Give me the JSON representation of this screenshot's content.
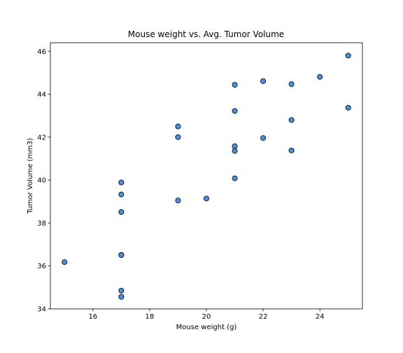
{
  "chart_data": {
    "type": "scatter",
    "title": "Mouse weight vs. Avg. Tumor Volume",
    "xlabel": "Mouse weight (g)",
    "ylabel": "Tumor Volume (mm3)",
    "xlim": [
      14.5,
      25.5
    ],
    "ylim": [
      34,
      46.4
    ],
    "xticks": [
      16,
      18,
      20,
      22,
      24
    ],
    "yticks": [
      34,
      36,
      38,
      40,
      42,
      44,
      46
    ],
    "grid": false,
    "marker_color": "#4a90d9",
    "marker_edge_color": "#000000",
    "points": [
      {
        "x": 15,
        "y": 36.18
      },
      {
        "x": 17,
        "y": 39.89
      },
      {
        "x": 17,
        "y": 39.33
      },
      {
        "x": 17,
        "y": 38.51
      },
      {
        "x": 17,
        "y": 36.51
      },
      {
        "x": 17,
        "y": 36.51
      },
      {
        "x": 17,
        "y": 36.51
      },
      {
        "x": 17,
        "y": 34.85
      },
      {
        "x": 17,
        "y": 34.56
      },
      {
        "x": 19,
        "y": 42.5
      },
      {
        "x": 19,
        "y": 42.0
      },
      {
        "x": 19,
        "y": 39.05
      },
      {
        "x": 20,
        "y": 39.14
      },
      {
        "x": 21,
        "y": 44.44
      },
      {
        "x": 21,
        "y": 43.22
      },
      {
        "x": 21,
        "y": 41.58
      },
      {
        "x": 21,
        "y": 41.36
      },
      {
        "x": 21,
        "y": 40.08
      },
      {
        "x": 22,
        "y": 44.61
      },
      {
        "x": 22,
        "y": 41.96
      },
      {
        "x": 23,
        "y": 44.47
      },
      {
        "x": 23,
        "y": 42.8
      },
      {
        "x": 23,
        "y": 41.38
      },
      {
        "x": 24,
        "y": 44.81
      },
      {
        "x": 25,
        "y": 45.8
      },
      {
        "x": 25,
        "y": 43.37
      }
    ]
  }
}
